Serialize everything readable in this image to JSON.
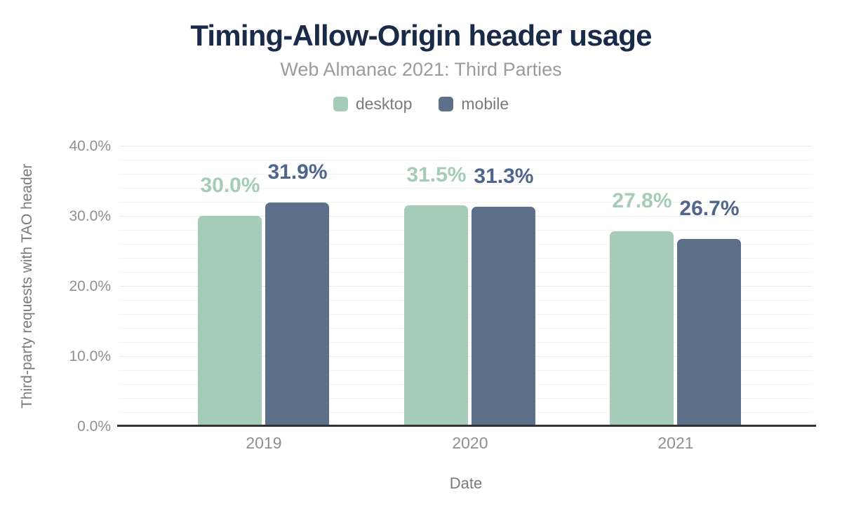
{
  "figure": {
    "title": "Timing-Allow-Origin header usage",
    "subtitle": "Web Almanac 2021: Third Parties"
  },
  "legend": {
    "items": [
      {
        "label": "desktop",
        "color": "#a4ccb6"
      },
      {
        "label": "mobile",
        "color": "#5d7089"
      }
    ]
  },
  "colors": {
    "title_text": "#1a2b49",
    "subtitle_text": "#9b9b9b",
    "axis_tick_text": "#8f8f8f",
    "axis_title_text": "#7a7a7a",
    "axis_line": "#333333",
    "grid_minor": "#f4f4f4",
    "grid_major": "#eaeaea",
    "desktop": "#a4ccb6",
    "mobile": "#5d7089",
    "desktop_label_text": "#a4ccb6",
    "mobile_label_text": "#4f658e"
  },
  "chart_data": {
    "type": "bar",
    "title": "Timing-Allow-Origin header usage",
    "subtitle": "Web Almanac 2021: Third Parties",
    "categories": [
      "2019",
      "2020",
      "2021"
    ],
    "series": [
      {
        "name": "desktop",
        "color": "#a4ccb6",
        "label_color": "#a4ccb6",
        "values": [
          30.0,
          31.5,
          27.8
        ],
        "data_labels": [
          "30.0%",
          "31.5%",
          "27.8%"
        ]
      },
      {
        "name": "mobile",
        "color": "#5d7089",
        "label_color": "#4f658e",
        "values": [
          31.9,
          31.3,
          26.7
        ],
        "data_labels": [
          "31.9%",
          "31.3%",
          "26.7%"
        ]
      }
    ],
    "xlabel": "Date",
    "ylabel": "Third-party requests with TAO header",
    "ylim": [
      0,
      40
    ],
    "yticks": [
      {
        "value": 0,
        "label": "0.0%"
      },
      {
        "value": 10,
        "label": "10.0%"
      },
      {
        "value": 20,
        "label": "20.0%"
      },
      {
        "value": 30,
        "label": "30.0%"
      },
      {
        "value": 40,
        "label": "40.0%"
      }
    ],
    "grid": {
      "orientation": "horizontal",
      "minor_step_percent": 2,
      "major_step_percent": 10
    },
    "legend_position": "top"
  }
}
